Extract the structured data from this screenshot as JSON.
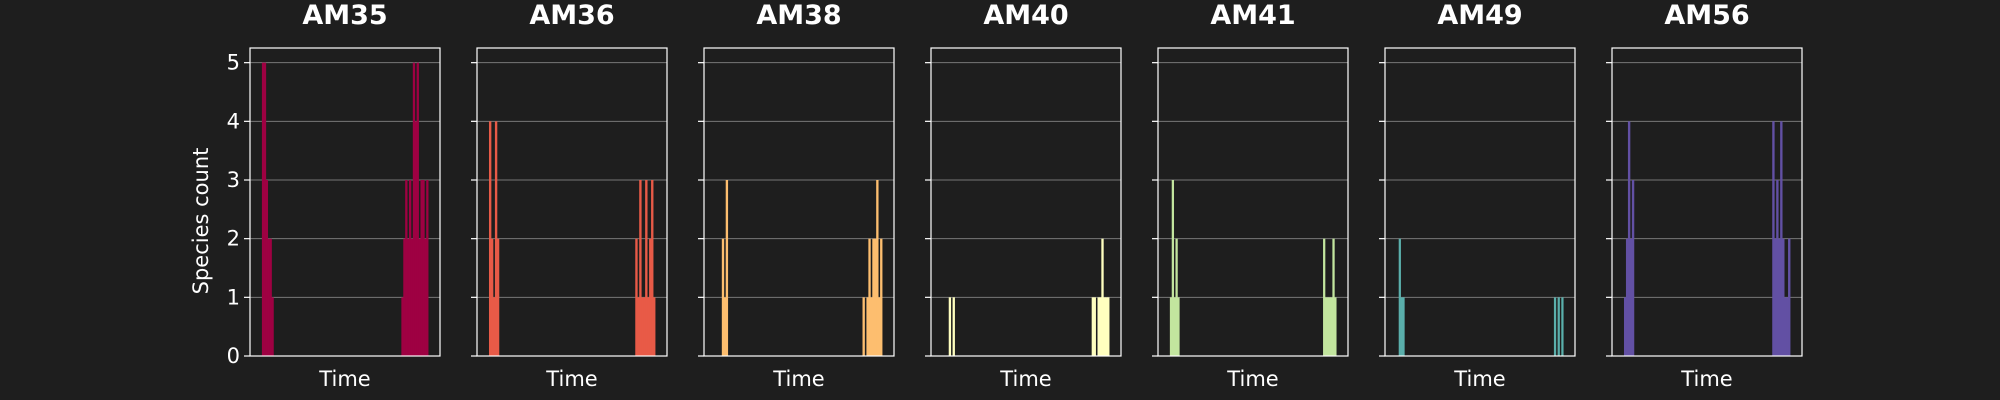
{
  "chart_data": {
    "type": "bar",
    "ylabel": "Species count",
    "xlabel": "Time",
    "ylim": [
      0,
      5.25
    ],
    "yticks": [
      0,
      1,
      2,
      3,
      4,
      5
    ],
    "grid": "horizontal",
    "panels": [
      {
        "title": "AM35",
        "color": "#9e0142",
        "values": [
          0,
          5,
          5,
          3,
          2,
          2,
          1,
          0,
          0,
          0,
          0,
          0,
          0,
          0,
          0,
          0,
          0,
          0,
          0,
          0,
          0,
          0,
          0,
          0,
          0,
          0,
          0,
          0,
          0,
          0,
          0,
          0,
          0,
          0,
          0,
          0,
          0,
          0,
          0,
          0,
          0,
          0,
          0,
          0,
          0,
          0,
          0,
          0,
          0,
          0,
          0,
          0,
          0,
          0,
          0,
          0,
          0,
          0,
          0,
          0,
          0,
          0,
          0,
          0,
          0,
          0,
          0,
          0,
          0,
          0,
          0,
          0,
          0,
          0,
          1,
          2,
          3,
          2,
          3,
          2,
          5,
          4,
          5,
          2,
          3,
          3,
          2,
          3,
          0
        ]
      },
      {
        "title": "AM36",
        "color": "#e85a47",
        "values": [
          0,
          4,
          2,
          1,
          4,
          2,
          0,
          0,
          0,
          0,
          0,
          0,
          0,
          0,
          0,
          0,
          0,
          0,
          0,
          0,
          0,
          0,
          0,
          0,
          0,
          0,
          0,
          0,
          0,
          0,
          0,
          0,
          0,
          0,
          0,
          0,
          0,
          0,
          0,
          0,
          0,
          0,
          0,
          0,
          0,
          0,
          0,
          0,
          0,
          0,
          0,
          0,
          0,
          0,
          0,
          0,
          0,
          0,
          0,
          0,
          0,
          0,
          0,
          0,
          0,
          0,
          0,
          0,
          0,
          0,
          0,
          0,
          0,
          0,
          0,
          2,
          1,
          3,
          1,
          1,
          3,
          1,
          2,
          3,
          1,
          0
        ]
      },
      {
        "title": "AM38",
        "color": "#fdbe6f",
        "values": [
          0,
          0,
          0,
          0,
          2,
          1,
          3,
          0,
          0,
          0,
          0,
          0,
          0,
          0,
          0,
          0,
          0,
          0,
          0,
          0,
          0,
          0,
          0,
          0,
          0,
          0,
          0,
          0,
          0,
          0,
          0,
          0,
          0,
          0,
          0,
          0,
          0,
          0,
          0,
          0,
          0,
          0,
          0,
          0,
          0,
          0,
          0,
          0,
          0,
          0,
          0,
          0,
          0,
          0,
          0,
          0,
          0,
          0,
          0,
          0,
          0,
          0,
          0,
          0,
          0,
          0,
          0,
          0,
          0,
          0,
          0,
          0,
          0,
          0,
          0,
          0,
          1,
          0,
          1,
          2,
          1,
          2,
          2,
          3,
          1,
          2,
          0
        ]
      },
      {
        "title": "AM40",
        "color": "#ffffbf",
        "values": [
          0,
          0,
          0,
          0,
          1,
          0,
          1,
          0,
          0,
          0,
          0,
          0,
          0,
          0,
          0,
          0,
          0,
          0,
          0,
          0,
          0,
          0,
          0,
          0,
          0,
          0,
          0,
          0,
          0,
          0,
          0,
          0,
          0,
          0,
          0,
          0,
          0,
          0,
          0,
          0,
          0,
          0,
          0,
          0,
          0,
          0,
          0,
          0,
          0,
          0,
          0,
          0,
          0,
          0,
          0,
          0,
          0,
          0,
          0,
          0,
          0,
          0,
          0,
          0,
          0,
          0,
          0,
          0,
          0,
          0,
          0,
          0,
          0,
          0,
          0,
          0,
          0,
          0,
          1,
          1,
          0,
          1,
          1,
          2,
          1,
          1,
          1,
          0
        ]
      },
      {
        "title": "AM41",
        "color": "#c2e59e",
        "values": [
          0,
          1,
          3,
          1,
          2,
          1,
          0,
          0,
          0,
          0,
          0,
          0,
          0,
          0,
          0,
          0,
          0,
          0,
          0,
          0,
          0,
          0,
          0,
          0,
          0,
          0,
          0,
          0,
          0,
          0,
          0,
          0,
          0,
          0,
          0,
          0,
          0,
          0,
          0,
          0,
          0,
          0,
          0,
          0,
          0,
          0,
          0,
          0,
          0,
          0,
          0,
          0,
          0,
          0,
          0,
          0,
          0,
          0,
          0,
          0,
          0,
          0,
          0,
          0,
          0,
          0,
          0,
          0,
          0,
          0,
          0,
          0,
          0,
          0,
          0,
          0,
          0,
          0,
          0,
          0,
          0,
          0,
          0,
          2,
          1,
          1,
          1,
          1,
          2,
          1,
          0
        ]
      },
      {
        "title": "AM49",
        "color": "#5aafab",
        "values": [
          0,
          0,
          2,
          1,
          1,
          0,
          0,
          0,
          0,
          0,
          0,
          0,
          0,
          0,
          0,
          0,
          0,
          0,
          0,
          0,
          0,
          0,
          0,
          0,
          0,
          0,
          0,
          0,
          0,
          0,
          0,
          0,
          0,
          0,
          0,
          0,
          0,
          0,
          0,
          0,
          0,
          0,
          0,
          0,
          0,
          0,
          0,
          0,
          0,
          0,
          0,
          0,
          0,
          0,
          0,
          0,
          0,
          0,
          0,
          0,
          0,
          0,
          0,
          0,
          0,
          0,
          0,
          0,
          0,
          0,
          0,
          0,
          0,
          0,
          0,
          0,
          0,
          0,
          0,
          0,
          0,
          0,
          0,
          0,
          0,
          0,
          1,
          0,
          1,
          0,
          1,
          0
        ]
      },
      {
        "title": "AM56",
        "color": "#6250a4",
        "values": [
          0,
          1,
          2,
          4,
          2,
          3,
          0,
          0,
          0,
          0,
          0,
          0,
          0,
          0,
          0,
          0,
          0,
          0,
          0,
          0,
          0,
          0,
          0,
          0,
          0,
          0,
          0,
          0,
          0,
          0,
          0,
          0,
          0,
          0,
          0,
          0,
          0,
          0,
          0,
          0,
          0,
          0,
          0,
          0,
          0,
          0,
          0,
          0,
          0,
          0,
          0,
          0,
          0,
          0,
          0,
          0,
          0,
          0,
          0,
          0,
          0,
          0,
          0,
          0,
          0,
          0,
          0,
          0,
          0,
          0,
          0,
          0,
          0,
          0,
          0,
          0,
          4,
          2,
          3,
          2,
          4,
          2,
          1,
          1,
          2,
          0
        ]
      }
    ]
  }
}
